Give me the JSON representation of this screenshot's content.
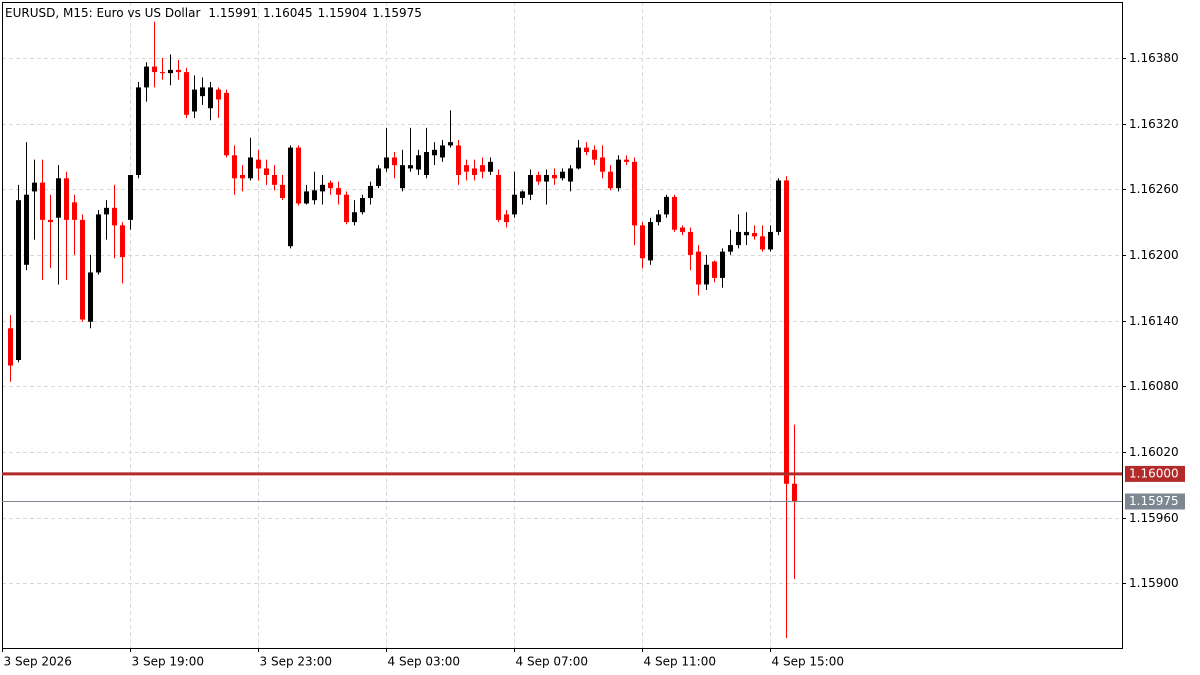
{
  "chart_data": {
    "type": "candlestick",
    "title": "EURUSD, M15:  Euro vs US Dollar",
    "categories": [
      "3 Sep 2026",
      null,
      null,
      null,
      null,
      null,
      null,
      null,
      null,
      null,
      null,
      null,
      null,
      null,
      null,
      null,
      "3 Sep 19:00",
      null,
      null,
      null,
      null,
      null,
      null,
      null,
      null,
      null,
      null,
      null,
      null,
      null,
      null,
      null,
      "3 Sep 23:00",
      null,
      null,
      null,
      null,
      null,
      null,
      null,
      null,
      null,
      null,
      null,
      null,
      null,
      null,
      null,
      "4 Sep 03:00",
      null,
      null,
      null,
      null,
      null,
      null,
      null,
      null,
      null,
      null,
      null,
      null,
      null,
      null,
      null,
      "4 Sep 07:00",
      null,
      null,
      null,
      null,
      null,
      null,
      null,
      null,
      null,
      null,
      null,
      null,
      null,
      null,
      null,
      "4 Sep 11:00",
      null,
      null,
      null,
      null,
      null,
      null,
      null,
      null,
      null,
      null,
      null,
      null,
      null,
      null,
      null,
      "4 Sep 15:00",
      null,
      null
    ],
    "open": [
      1.16133,
      1.16104,
      1.16191,
      1.16258,
      1.16266,
      1.16232,
      1.16234,
      1.1627,
      1.16248,
      1.16232,
      1.16139,
      1.16184,
      1.16237,
      1.16243,
      1.16227,
      1.16232,
      1.16273,
      1.16353,
      1.16372,
      1.16367,
      1.16366,
      1.16369,
      1.16367,
      1.16331,
      1.16345,
      1.16334,
      1.16351,
      1.16348,
      1.16291,
      1.16273,
      1.1627,
      1.16287,
      1.16279,
      1.16273,
      1.16264,
      1.16208,
      1.16298,
      1.16247,
      1.1625,
      1.16258,
      1.16266,
      1.16261,
      1.16255,
      1.1623,
      1.16239,
      1.16252,
      1.16263,
      1.16279,
      1.16289,
      1.16261,
      1.16279,
      1.16278,
      1.16273,
      1.16291,
      1.16289,
      1.163,
      1.163,
      1.16282,
      1.16279,
      1.16282,
      1.16276,
      1.16273,
      1.16237,
      1.16237,
      1.16252,
      1.16255,
      1.16273,
      1.16267,
      1.16273,
      1.1627,
      1.16267,
      1.16279,
      1.16298,
      1.16296,
      1.16289,
      1.16276,
      1.16261,
      1.16287,
      1.16285,
      1.16227,
      1.16195,
      1.1623,
      1.16237,
      1.16253,
      1.16225,
      1.16221,
      1.16203,
      1.16173,
      1.16194,
      1.16179,
      1.16203,
      1.16209,
      1.16218,
      1.1622,
      1.16217,
      1.16205,
      1.16221,
      1.16268,
      1.15991
    ],
    "high": [
      1.16145,
      1.16264,
      1.16303,
      1.16287,
      1.16287,
      1.16255,
      1.16282,
      1.16276,
      1.16255,
      1.16237,
      1.162,
      1.16241,
      1.1625,
      1.16264,
      1.1623,
      1.16273,
      1.16358,
      1.16376,
      1.16413,
      1.1638,
      1.16383,
      1.16378,
      1.16371,
      1.16364,
      1.16362,
      1.16358,
      1.16353,
      1.16351,
      1.163,
      1.16282,
      1.16307,
      1.16296,
      1.16287,
      1.16282,
      1.16273,
      1.163,
      1.163,
      1.16264,
      1.16276,
      1.16273,
      1.16268,
      1.16267,
      1.16258,
      1.1625,
      1.16255,
      1.16267,
      1.16282,
      1.16316,
      1.16294,
      1.16296,
      1.16316,
      1.16296,
      1.16316,
      1.16303,
      1.16305,
      1.16332,
      1.16305,
      1.16287,
      1.16287,
      1.16289,
      1.16289,
      1.16278,
      1.16241,
      1.16276,
      1.16259,
      1.16278,
      1.16276,
      1.16278,
      1.16279,
      1.16279,
      1.16282,
      1.16305,
      1.16303,
      1.163,
      1.163,
      1.16282,
      1.16291,
      1.16291,
      1.16289,
      1.1623,
      1.16234,
      1.16241,
      1.16255,
      1.16255,
      1.16227,
      1.16225,
      1.16209,
      1.162,
      1.16195,
      1.16206,
      1.16223,
      1.16237,
      1.16239,
      1.16227,
      1.16227,
      1.16227,
      1.1627,
      1.16272,
      1.16045
    ],
    "low": [
      1.16084,
      1.16102,
      1.16186,
      1.16214,
      1.16177,
      1.16188,
      1.16173,
      1.16177,
      1.162,
      1.16139,
      1.16133,
      1.16182,
      1.16214,
      1.16197,
      1.16174,
      1.16223,
      1.1627,
      1.1634,
      1.16353,
      1.1636,
      1.16355,
      1.1636,
      1.16325,
      1.16325,
      1.16337,
      1.16323,
      1.16325,
      1.16289,
      1.16255,
      1.16258,
      1.16268,
      1.16268,
      1.16264,
      1.16259,
      1.1625,
      1.16206,
      1.16245,
      1.16246,
      1.16246,
      1.16246,
      1.16255,
      1.16246,
      1.16228,
      1.16227,
      1.16237,
      1.16246,
      1.16261,
      1.16276,
      1.1627,
      1.16258,
      1.16276,
      1.16273,
      1.1627,
      1.16282,
      1.16285,
      1.16298,
      1.16264,
      1.16268,
      1.16268,
      1.1627,
      1.16273,
      1.1623,
      1.16225,
      1.16234,
      1.16246,
      1.1625,
      1.16264,
      1.16246,
      1.16264,
      1.16268,
      1.16258,
      1.16278,
      1.16291,
      1.16282,
      1.1627,
      1.16259,
      1.16258,
      1.16282,
      1.16209,
      1.16188,
      1.16191,
      1.16227,
      1.16234,
      1.16221,
      1.16218,
      1.16186,
      1.16163,
      1.16168,
      1.16175,
      1.1617,
      1.162,
      1.16206,
      1.16209,
      1.16214,
      1.16203,
      1.16203,
      1.16218,
      1.1585,
      1.15904
    ],
    "close": [
      1.16099,
      1.1625,
      1.16255,
      1.16266,
      1.16232,
      1.1623,
      1.1627,
      1.16232,
      1.16232,
      1.16141,
      1.16184,
      1.16237,
      1.16243,
      1.16227,
      1.16198,
      1.16273,
      1.16353,
      1.16372,
      1.16367,
      1.16366,
      1.16369,
      1.16367,
      1.16328,
      1.16351,
      1.16353,
      1.16353,
      1.16342,
      1.16291,
      1.1627,
      1.1627,
      1.16289,
      1.16279,
      1.16273,
      1.16264,
      1.16252,
      1.16298,
      1.16247,
      1.16258,
      1.16259,
      1.16264,
      1.16261,
      1.16255,
      1.1623,
      1.16239,
      1.16252,
      1.16263,
      1.16279,
      1.16289,
      1.16282,
      1.16282,
      1.16282,
      1.16291,
      1.16294,
      1.16296,
      1.163,
      1.16303,
      1.16273,
      1.16276,
      1.16273,
      1.16276,
      1.16285,
      1.16232,
      1.1623,
      1.16255,
      1.16258,
      1.16273,
      1.16267,
      1.16273,
      1.1627,
      1.16276,
      1.16279,
      1.16298,
      1.16294,
      1.16287,
      1.16276,
      1.16261,
      1.16287,
      1.16285,
      1.16227,
      1.16197,
      1.1623,
      1.16237,
      1.16253,
      1.16223,
      1.16221,
      1.162,
      1.16173,
      1.16191,
      1.16179,
      1.16203,
      1.16209,
      1.16221,
      1.16221,
      1.16217,
      1.16205,
      1.16221,
      1.16268,
      1.15991,
      1.15975
    ],
    "up_color": "#000000",
    "down_color": "#ff0000",
    "bid_color": "#7d8792",
    "ylim": [
      1.15841,
      1.16431
    ],
    "yticks": [
      {
        "value": 1.1638,
        "label": "1.16380"
      },
      {
        "value": 1.1632,
        "label": "1.16320"
      },
      {
        "value": 1.1626,
        "label": "1.16260"
      },
      {
        "value": 1.162,
        "label": "1.16200"
      },
      {
        "value": 1.1614,
        "label": "1.16140"
      },
      {
        "value": 1.1608,
        "label": "1.16080"
      },
      {
        "value": 1.1602,
        "label": "1.16020"
      },
      {
        "value": 1.1596,
        "label": "1.15960"
      },
      {
        "value": 1.159,
        "label": "1.15900"
      }
    ],
    "levels": [
      {
        "value": 1.16,
        "label": "1.16000",
        "color": "#b22a2a"
      }
    ],
    "grid": true
  }
}
